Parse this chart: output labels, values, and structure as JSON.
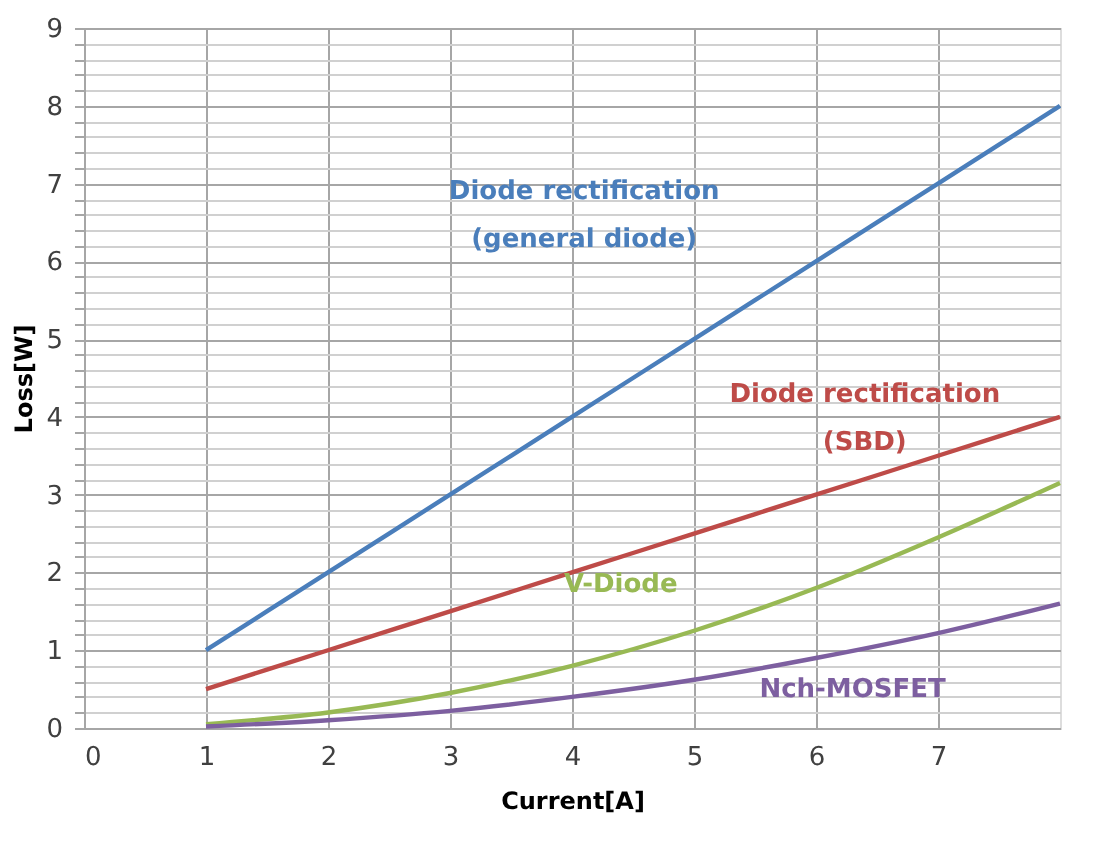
{
  "chart_data": {
    "type": "line",
    "xlabel": "Current[A]",
    "ylabel": "Loss[W]",
    "x": [
      1,
      2,
      3,
      4,
      5,
      6,
      7,
      8
    ],
    "series": [
      {
        "name": "Diode rectification\n(general diode)",
        "color": "#4a7ebb",
        "values": [
          1,
          2,
          3,
          4,
          5,
          6,
          7,
          8
        ]
      },
      {
        "name": "Diode rectification\n(SBD)",
        "color": "#be4b48",
        "values": [
          0.5,
          1,
          1.5,
          2,
          2.5,
          3,
          3.5,
          4
        ]
      },
      {
        "name": "V-Diode",
        "color": "#98b954",
        "values": [
          0.05,
          0.2,
          0.45,
          0.8,
          1.25,
          1.8,
          2.45,
          3.15
        ]
      },
      {
        "name": "Nch-MOSFET",
        "color": "#7d5fa0",
        "values": [
          0.02,
          0.1,
          0.22,
          0.4,
          0.62,
          0.9,
          1.22,
          1.6
        ]
      }
    ],
    "xlim": [
      0,
      8
    ],
    "xticks": [
      0,
      1,
      2,
      3,
      4,
      5,
      6,
      7
    ],
    "ylim": [
      0,
      9
    ],
    "yticks": [
      0,
      {
        "value": 0.2,
        "label": null
      },
      {
        "value": 0.4,
        "label": null
      },
      {
        "value": 0.6,
        "label": null
      },
      {
        "value": 0.8,
        "label": null
      },
      1,
      {
        "value": 1.2,
        "label": null
      },
      {
        "value": 1.4,
        "label": null
      },
      {
        "value": 1.6,
        "label": null
      },
      {
        "value": 1.8,
        "label": null
      },
      2,
      {
        "value": 2.2,
        "label": null
      },
      {
        "value": 2.4,
        "label": null
      },
      {
        "value": 2.6,
        "label": null
      },
      {
        "value": 2.8,
        "label": null
      },
      3,
      {
        "value": 3.2,
        "label": null
      },
      {
        "value": 3.4,
        "label": null
      },
      {
        "value": 3.6,
        "label": null
      },
      {
        "value": 3.8,
        "label": null
      },
      4,
      {
        "value": 4.2,
        "label": null
      },
      {
        "value": 4.4,
        "label": null
      },
      {
        "value": 4.6,
        "label": null
      },
      {
        "value": 4.8,
        "label": null
      },
      5,
      {
        "value": 5.2,
        "label": null
      },
      {
        "value": 5.4,
        "label": null
      },
      {
        "value": 5.6,
        "label": null
      },
      {
        "value": 5.8,
        "label": null
      },
      6,
      {
        "value": 6.2,
        "label": null
      },
      {
        "value": 6.4,
        "label": null
      },
      {
        "value": 6.6,
        "label": null
      },
      {
        "value": 6.8,
        "label": null
      },
      7,
      {
        "value": 7.2,
        "label": null
      },
      {
        "value": 7.4,
        "label": null
      },
      {
        "value": 7.6,
        "label": null
      },
      {
        "value": 7.8,
        "label": null
      },
      8,
      {
        "value": 8.2,
        "label": null
      },
      {
        "value": 8.4,
        "label": null
      },
      {
        "value": 8.6,
        "label": null
      },
      {
        "value": 8.8,
        "label": null
      },
      9
    ],
    "grid": true,
    "marker": "none",
    "line_style": "solid"
  }
}
